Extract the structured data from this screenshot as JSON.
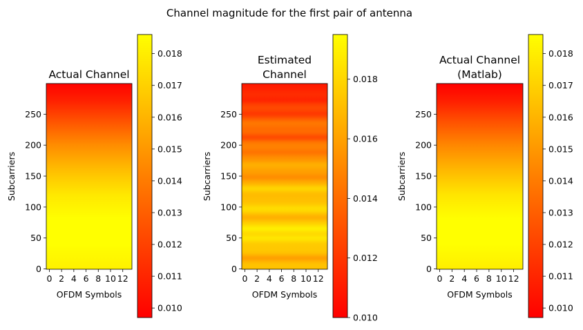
{
  "chart_data": {
    "suptitle": "Channel magnitude for the first pair of antenna",
    "colormap": {
      "name": "autumn",
      "low_color": "#ff0000",
      "high_color": "#ffff00"
    },
    "panels": [
      {
        "type": "heatmap",
        "title_lines": [
          "Actual Channel"
        ],
        "xlabel": "OFDM Symbols",
        "ylabel": "Subcarriers",
        "x_ticks": [
          0,
          2,
          4,
          6,
          8,
          10,
          12
        ],
        "y_ticks": [
          0,
          50,
          100,
          150,
          200,
          250
        ],
        "x_range": [
          -0.5,
          13.5
        ],
        "y_range": [
          -0.5,
          299.5
        ],
        "rows": 300,
        "cols": 14,
        "vmin": 0.0097,
        "vmax": 0.0186,
        "colorbar_ticks": [
          "0.010",
          "0.011",
          "0.012",
          "0.013",
          "0.014",
          "0.015",
          "0.016",
          "0.017",
          "0.018"
        ],
        "profile": [
          {
            "subcarrier": 0,
            "value": 0.0181
          },
          {
            "subcarrier": 40,
            "value": 0.0186
          },
          {
            "subcarrier": 80,
            "value": 0.0186
          },
          {
            "subcarrier": 120,
            "value": 0.0178
          },
          {
            "subcarrier": 160,
            "value": 0.0163
          },
          {
            "subcarrier": 200,
            "value": 0.0146
          },
          {
            "subcarrier": 240,
            "value": 0.0125
          },
          {
            "subcarrier": 270,
            "value": 0.0109
          },
          {
            "subcarrier": 299,
            "value": 0.0098
          }
        ],
        "ripple": []
      },
      {
        "type": "heatmap",
        "title_lines": [
          "Estimated",
          "Channel"
        ],
        "xlabel": "OFDM Symbols",
        "ylabel": "Subcarriers",
        "x_ticks": [
          0,
          2,
          4,
          6,
          8,
          10,
          12
        ],
        "y_ticks": [
          0,
          50,
          100,
          150,
          200,
          250
        ],
        "x_range": [
          -0.5,
          13.5
        ],
        "y_range": [
          -0.5,
          299.5
        ],
        "rows": 300,
        "cols": 14,
        "vmin": 0.01,
        "vmax": 0.0195,
        "colorbar_ticks": [
          "0.010",
          "0.012",
          "0.014",
          "0.016",
          "0.018"
        ],
        "profile": [
          {
            "subcarrier": 0,
            "value": 0.0172
          },
          {
            "subcarrier": 80,
            "value": 0.0178
          },
          {
            "subcarrier": 140,
            "value": 0.0165
          },
          {
            "subcarrier": 200,
            "value": 0.0148
          },
          {
            "subcarrier": 260,
            "value": 0.0128
          },
          {
            "subcarrier": 299,
            "value": 0.0108
          }
        ],
        "ripple": [
          {
            "subcarrier": 18,
            "delta": -0.0014
          },
          {
            "subcarrier": 50,
            "delta": 0.001
          },
          {
            "subcarrier": 65,
            "delta": 0.0012
          },
          {
            "subcarrier": 83,
            "delta": -0.0012
          },
          {
            "subcarrier": 98,
            "delta": 0.0008
          },
          {
            "subcarrier": 130,
            "delta": 0.0012
          },
          {
            "subcarrier": 148,
            "delta": -0.001
          },
          {
            "subcarrier": 168,
            "delta": 0.0008
          },
          {
            "subcarrier": 188,
            "delta": -0.0008
          },
          {
            "subcarrier": 212,
            "delta": -0.0016
          },
          {
            "subcarrier": 235,
            "delta": 0.0008
          },
          {
            "subcarrier": 250,
            "delta": -0.001
          },
          {
            "subcarrier": 272,
            "delta": -0.0008
          }
        ]
      },
      {
        "type": "heatmap",
        "title_lines": [
          "Actual Channel",
          "(Matlab)"
        ],
        "xlabel": "OFDM Symbols",
        "ylabel": "Subcarriers",
        "x_ticks": [
          0,
          2,
          4,
          6,
          8,
          10,
          12
        ],
        "y_ticks": [
          0,
          50,
          100,
          150,
          200,
          250
        ],
        "x_range": [
          -0.5,
          13.5
        ],
        "y_range": [
          -0.5,
          299.5
        ],
        "rows": 300,
        "cols": 14,
        "vmin": 0.0097,
        "vmax": 0.0186,
        "colorbar_ticks": [
          "0.010",
          "0.011",
          "0.012",
          "0.013",
          "0.014",
          "0.015",
          "0.016",
          "0.017",
          "0.018"
        ],
        "profile": [
          {
            "subcarrier": 0,
            "value": 0.018
          },
          {
            "subcarrier": 40,
            "value": 0.0186
          },
          {
            "subcarrier": 80,
            "value": 0.0186
          },
          {
            "subcarrier": 120,
            "value": 0.0177
          },
          {
            "subcarrier": 160,
            "value": 0.0161
          },
          {
            "subcarrier": 200,
            "value": 0.0144
          },
          {
            "subcarrier": 240,
            "value": 0.0124
          },
          {
            "subcarrier": 270,
            "value": 0.0108
          },
          {
            "subcarrier": 299,
            "value": 0.0097
          }
        ],
        "ripple": []
      }
    ]
  }
}
